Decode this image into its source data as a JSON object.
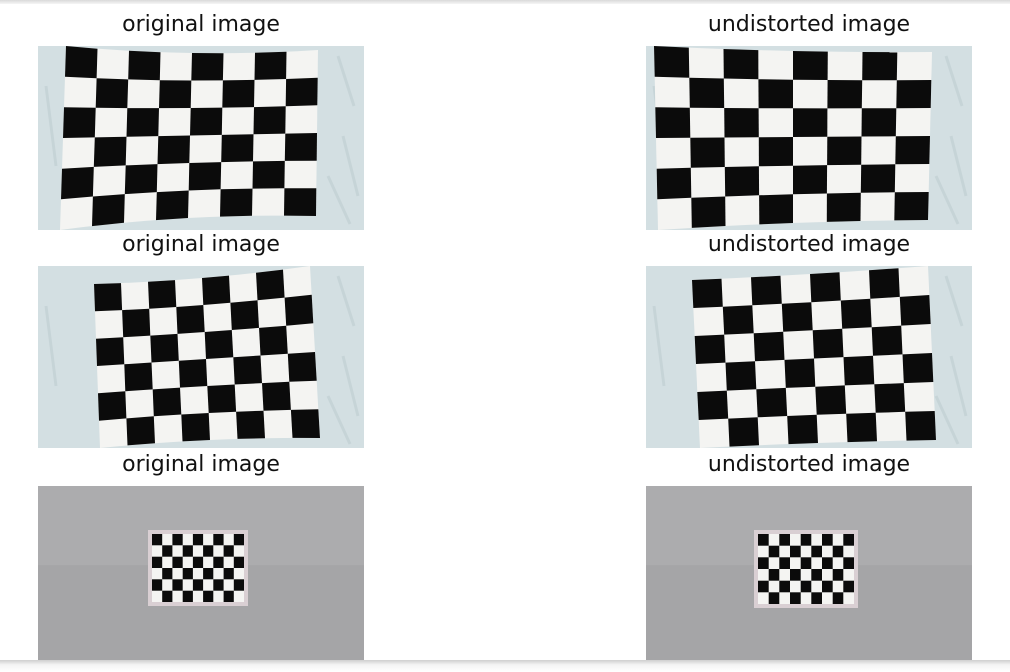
{
  "figure": {
    "panels": [
      {
        "title": "original image",
        "scene": "wall-checkerboard-large-a"
      },
      {
        "title": "undistorted image",
        "scene": "wall-checkerboard-large-a"
      },
      {
        "title": "original image",
        "scene": "wall-checkerboard-tilted"
      },
      {
        "title": "undistorted image",
        "scene": "wall-checkerboard-tilted"
      },
      {
        "title": "original image",
        "scene": "floor-checkerboard-small"
      },
      {
        "title": "undistorted image",
        "scene": "floor-checkerboard-small"
      }
    ],
    "colors": {
      "wall": "#d3dfe2",
      "paper": "#f4f4f2",
      "square": "#0b0b0b",
      "floor": "#a5a5a7"
    }
  }
}
